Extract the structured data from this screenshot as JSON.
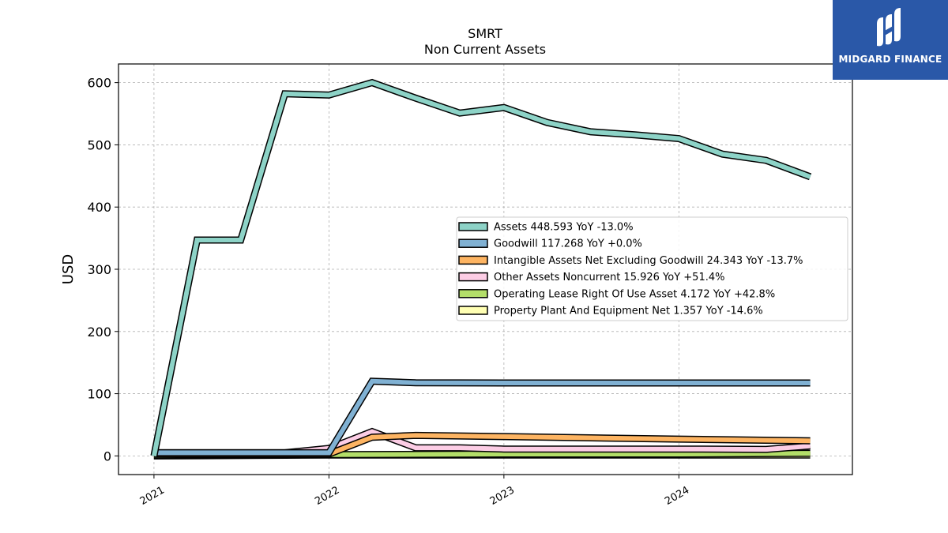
{
  "chart_data": {
    "type": "line",
    "title": "SMRT",
    "subtitle": "Non Current  Assets",
    "ylabel": "USD",
    "xlabel": "",
    "ylim": [
      -30,
      630
    ],
    "xlim": [
      "2020-10-19",
      "2024-12-28"
    ],
    "yticks": [
      0,
      100,
      200,
      300,
      400,
      500,
      600
    ],
    "xticks": [
      "2021-01-01",
      "2022-01-01",
      "2023-01-01",
      "2024-01-01"
    ],
    "xtick_labels": [
      "2021",
      "2022",
      "2023",
      "2024"
    ],
    "grid": true,
    "legend_position": "center-right",
    "series": [
      {
        "name": "Assets",
        "legend": "Assets  448.593 YoY -13.0%",
        "color": "#8dd3c7",
        "points": [
          [
            "2021-01-01",
            0
          ],
          [
            "2021-04-01",
            347
          ],
          [
            "2021-07-01",
            347
          ],
          [
            "2021-10-01",
            582
          ],
          [
            "2022-01-01",
            580
          ],
          [
            "2022-04-01",
            600
          ],
          [
            "2022-07-01",
            575
          ],
          [
            "2022-10-01",
            551
          ],
          [
            "2023-01-01",
            560
          ],
          [
            "2023-04-01",
            536
          ],
          [
            "2023-07-01",
            521
          ],
          [
            "2023-10-01",
            516
          ],
          [
            "2024-01-01",
            510
          ],
          [
            "2024-04-01",
            485
          ],
          [
            "2024-07-01",
            475
          ],
          [
            "2024-10-01",
            448.593
          ]
        ]
      },
      {
        "name": "Goodwill",
        "legend": "Goodwill  117.268 YoY +0.0%",
        "color": "#80b1d3",
        "points": [
          [
            "2021-01-01",
            5
          ],
          [
            "2021-07-01",
            5
          ],
          [
            "2022-01-01",
            5
          ],
          [
            "2022-04-01",
            120
          ],
          [
            "2022-07-01",
            117.5
          ],
          [
            "2023-01-01",
            117.268
          ],
          [
            "2024-01-01",
            117.268
          ],
          [
            "2024-10-01",
            117.268
          ]
        ]
      },
      {
        "name": "Intangible Assets Net Excluding Goodwill",
        "legend": "Intangible Assets Net Excluding Goodwill  24.343 YoY -13.7%",
        "color": "#fdb462",
        "points": [
          [
            "2021-01-01",
            3
          ],
          [
            "2022-01-01",
            3
          ],
          [
            "2022-04-01",
            30
          ],
          [
            "2022-07-01",
            33
          ],
          [
            "2023-01-01",
            31
          ],
          [
            "2023-07-01",
            29
          ],
          [
            "2024-01-01",
            27
          ],
          [
            "2024-10-01",
            24.343
          ]
        ]
      },
      {
        "name": "Other Assets Noncurrent",
        "legend": "Other Assets Noncurrent  15.926 YoY +51.4%",
        "color": "#fccde5",
        "points": [
          [
            "2021-01-01",
            5
          ],
          [
            "2021-10-01",
            5
          ],
          [
            "2022-01-01",
            12
          ],
          [
            "2022-04-01",
            39
          ],
          [
            "2022-07-01",
            13
          ],
          [
            "2022-10-01",
            13
          ],
          [
            "2023-01-01",
            11
          ],
          [
            "2024-01-01",
            11
          ],
          [
            "2024-07-01",
            10.5
          ],
          [
            "2024-10-01",
            15.926
          ]
        ]
      },
      {
        "name": "Operating Lease Right Of Use Asset",
        "legend": "Operating Lease Right Of Use Asset  4.172 YoY +42.8%",
        "color": "#b3de69",
        "points": [
          [
            "2021-01-01",
            1
          ],
          [
            "2022-01-01",
            2
          ],
          [
            "2023-01-01",
            3
          ],
          [
            "2024-01-01",
            3
          ],
          [
            "2024-10-01",
            4.172
          ]
        ]
      },
      {
        "name": "Property Plant And Equipment Net",
        "legend": "Property Plant And Equipment Net  1.357 YoY -14.6%",
        "color": "#ffffb3",
        "points": [
          [
            "2021-01-01",
            0
          ],
          [
            "2022-01-01",
            1.5
          ],
          [
            "2023-01-01",
            1.5
          ],
          [
            "2024-01-01",
            1.5
          ],
          [
            "2024-10-01",
            1.357
          ]
        ]
      }
    ]
  },
  "logo": {
    "text": "MIDGARD FINANCE",
    "bg_color": "#2a58a8"
  }
}
